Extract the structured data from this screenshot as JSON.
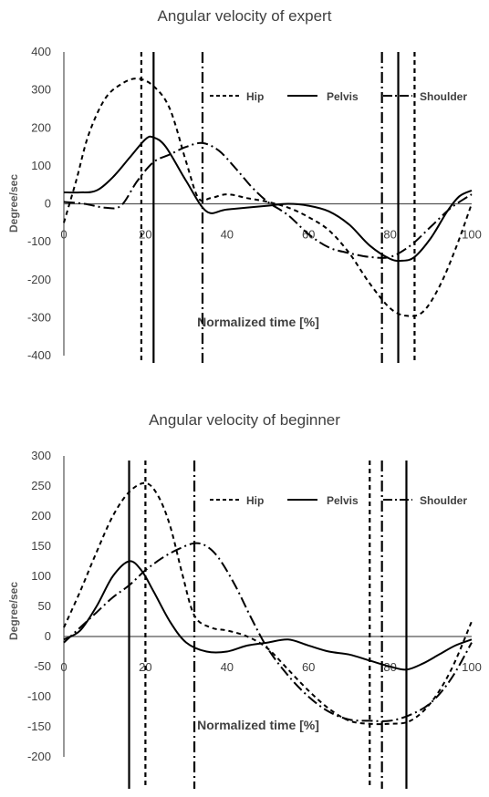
{
  "chart_data": [
    {
      "type": "line",
      "title": "Angular velocity of expert",
      "xlabel": "Normalized time [%]",
      "ylabel": "Degree/sec",
      "xlim": [
        0,
        100
      ],
      "ylim": [
        -400,
        400
      ],
      "xticks": [
        "0",
        "20",
        "40",
        "60",
        "80",
        "100"
      ],
      "yticks": [
        "400",
        "300",
        "200",
        "100",
        "0",
        "-100",
        "-200",
        "-300",
        "-400"
      ],
      "legend_position": "top-right",
      "grid": false,
      "series": [
        {
          "name": "Hip",
          "dash": "dashed",
          "x": [
            0,
            3,
            6,
            10,
            14,
            18,
            22,
            26,
            30,
            33,
            36,
            40,
            45,
            50,
            55,
            60,
            65,
            70,
            75,
            80,
            84,
            88,
            92,
            96,
            100
          ],
          "y": [
            -50,
            60,
            180,
            275,
            315,
            330,
            310,
            250,
            110,
            15,
            15,
            25,
            15,
            5,
            -10,
            -35,
            -70,
            -130,
            -210,
            -275,
            -295,
            -285,
            -220,
            -120,
            0
          ]
        },
        {
          "name": "Pelvis",
          "dash": "solid",
          "x": [
            0,
            4,
            8,
            12,
            16,
            20,
            22,
            25,
            30,
            35,
            40,
            50,
            55,
            60,
            65,
            70,
            75,
            80,
            83,
            86,
            90,
            94,
            97,
            100
          ],
          "y": [
            30,
            30,
            35,
            70,
            120,
            170,
            175,
            150,
            60,
            -20,
            -15,
            -5,
            0,
            -5,
            -20,
            -55,
            -110,
            -145,
            -150,
            -140,
            -90,
            -20,
            20,
            35
          ]
        },
        {
          "name": "Shoulder",
          "dash": "dash-dot",
          "x": [
            0,
            5,
            10,
            14,
            18,
            22,
            26,
            30,
            34,
            38,
            42,
            46,
            50,
            55,
            60,
            65,
            70,
            75,
            80,
            85,
            90,
            95,
            100
          ],
          "y": [
            5,
            0,
            -10,
            -5,
            60,
            110,
            130,
            150,
            160,
            140,
            95,
            45,
            5,
            -30,
            -80,
            -115,
            -130,
            -140,
            -140,
            -110,
            -60,
            -10,
            25
          ]
        }
      ],
      "vlines": [
        {
          "series": "Hip",
          "x": 19
        },
        {
          "series": "Pelvis",
          "x": 22
        },
        {
          "series": "Shoulder",
          "x": 34
        },
        {
          "series": "Shoulder",
          "x": 78
        },
        {
          "series": "Pelvis",
          "x": 82
        },
        {
          "series": "Hip",
          "x": 86
        }
      ]
    },
    {
      "type": "line",
      "title": "Angular velocity of beginner",
      "xlabel": "Normalized time [%]",
      "ylabel": "Degree/sec",
      "xlim": [
        0,
        100
      ],
      "ylim": [
        -200,
        300
      ],
      "xticks": [
        "0",
        "20",
        "40",
        "60",
        "80",
        "100"
      ],
      "yticks": [
        "300",
        "250",
        "200",
        "150",
        "100",
        "50",
        "0",
        "-50",
        "-100",
        "-150",
        "-200"
      ],
      "legend_position": "top-right",
      "grid": false,
      "series": [
        {
          "name": "Hip",
          "dash": "dashed",
          "x": [
            0,
            4,
            8,
            12,
            16,
            20,
            23,
            26,
            29,
            32,
            36,
            40,
            45,
            50,
            55,
            60,
            65,
            70,
            75,
            80,
            85,
            90,
            95,
            100
          ],
          "y": [
            15,
            75,
            140,
            200,
            240,
            255,
            235,
            185,
            105,
            35,
            15,
            10,
            0,
            -20,
            -55,
            -90,
            -120,
            -140,
            -145,
            -145,
            -140,
            -110,
            -55,
            25
          ]
        },
        {
          "name": "Pelvis",
          "dash": "solid",
          "x": [
            0,
            4,
            8,
            12,
            16,
            19,
            22,
            26,
            30,
            35,
            40,
            45,
            50,
            55,
            60,
            65,
            70,
            75,
            80,
            84,
            88,
            92,
            96,
            100
          ],
          "y": [
            -5,
            10,
            50,
            100,
            125,
            110,
            75,
            25,
            -10,
            -25,
            -25,
            -15,
            -10,
            -5,
            -15,
            -25,
            -30,
            -40,
            -50,
            -55,
            -45,
            -30,
            -15,
            -5
          ]
        },
        {
          "name": "Shoulder",
          "dash": "dash-dot",
          "x": [
            0,
            4,
            8,
            12,
            16,
            20,
            24,
            28,
            32,
            35,
            38,
            42,
            46,
            50,
            55,
            60,
            65,
            70,
            75,
            80,
            85,
            90,
            95,
            100
          ],
          "y": [
            -10,
            15,
            40,
            65,
            85,
            110,
            130,
            145,
            155,
            150,
            130,
            85,
            30,
            -20,
            -65,
            -100,
            -125,
            -138,
            -140,
            -140,
            -130,
            -110,
            -70,
            -10
          ]
        }
      ],
      "vlines": [
        {
          "series": "Pelvis",
          "x": 16
        },
        {
          "series": "Hip",
          "x": 20
        },
        {
          "series": "Shoulder",
          "x": 32
        },
        {
          "series": "Hip",
          "x": 75
        },
        {
          "series": "Shoulder",
          "x": 78
        },
        {
          "series": "Pelvis",
          "x": 84
        }
      ]
    }
  ]
}
